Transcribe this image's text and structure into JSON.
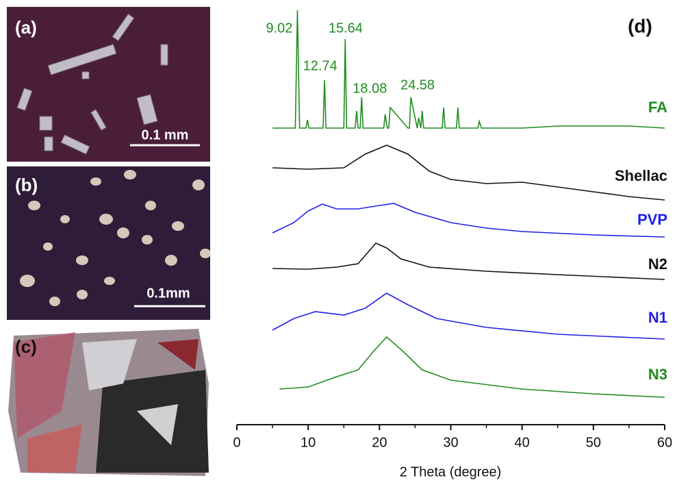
{
  "panels": [
    {
      "label": "(a)",
      "scale_bar": "0.1 mm"
    },
    {
      "label": "(b)",
      "scale_bar": "0.1mm"
    },
    {
      "label": "(c)"
    }
  ],
  "chart_data": {
    "type": "line",
    "panel_label": "(d)",
    "x_label": "2 Theta (degree)",
    "xlim": [
      0,
      60
    ],
    "xticks": [
      0,
      10,
      20,
      30,
      40,
      50,
      60
    ],
    "peak_labels": [
      9.02,
      12.74,
      15.64,
      18.08,
      24.58
    ],
    "peak_color": "#1e8c1e",
    "series": [
      {
        "name": "FA",
        "color": "#1e8c1e",
        "x": [
          5,
          8.2,
          8.5,
          8.8,
          9.7,
          9.9,
          10.1,
          12.1,
          12.3,
          12.5,
          15.0,
          15.2,
          15.4,
          16.6,
          16.8,
          17.0,
          17.3,
          17.5,
          17.7,
          20.6,
          20.8,
          21.1,
          21.3,
          21.5,
          24.0,
          24.2,
          24.4,
          25.3,
          25.5,
          25.8,
          26.0,
          26.2,
          28.8,
          29.0,
          29.2,
          30.8,
          31.0,
          31.2,
          33.8,
          34.0,
          34.3,
          40,
          45,
          50,
          55,
          60
        ],
        "values": [
          0,
          0,
          172,
          0,
          0,
          12,
          0,
          0,
          70,
          0,
          0,
          130,
          0,
          0,
          25,
          0,
          0,
          45,
          0,
          0,
          20,
          0,
          0,
          30,
          0,
          0,
          45,
          0,
          15,
          0,
          25,
          0,
          0,
          30,
          0,
          0,
          30,
          0,
          0,
          10,
          0,
          0,
          3,
          3,
          3,
          0
        ]
      },
      {
        "name": "Shellac",
        "color": "#111111",
        "x": [
          5,
          10,
          15,
          18,
          21,
          24,
          27,
          30,
          35,
          40,
          45,
          50,
          55,
          60
        ],
        "values": [
          50,
          48,
          50,
          70,
          83,
          70,
          45,
          33,
          27,
          29,
          22,
          15,
          8,
          3
        ]
      },
      {
        "name": "PVP",
        "color": "#1f1fe6",
        "x": [
          5,
          8,
          10,
          12,
          14,
          17,
          20,
          22,
          25,
          30,
          35,
          40,
          50,
          60
        ],
        "values": [
          8,
          23,
          40,
          50,
          43,
          43,
          48,
          51,
          38,
          23,
          15,
          10,
          5,
          2
        ]
      },
      {
        "name": "N2",
        "color": "#111111",
        "x": [
          5,
          10,
          14,
          17,
          19.5,
          21,
          23,
          27,
          35,
          45,
          60
        ],
        "values": [
          18,
          17,
          20,
          25,
          55,
          48,
          32,
          20,
          14,
          9,
          2
        ]
      },
      {
        "name": "N1",
        "color": "#1f1fe6",
        "x": [
          5,
          8,
          11,
          15,
          18,
          21,
          24,
          28,
          35,
          45,
          60
        ],
        "values": [
          15,
          32,
          42,
          37,
          47,
          69,
          52,
          32,
          19,
          9,
          2
        ]
      },
      {
        "name": "N3",
        "color": "#1e8c1e",
        "x": [
          6,
          10,
          14,
          17,
          19,
          21,
          23,
          26,
          30,
          40,
          50,
          60
        ],
        "values": [
          14,
          17,
          32,
          42,
          67,
          90,
          72,
          42,
          27,
          14,
          7,
          2
        ]
      }
    ]
  }
}
